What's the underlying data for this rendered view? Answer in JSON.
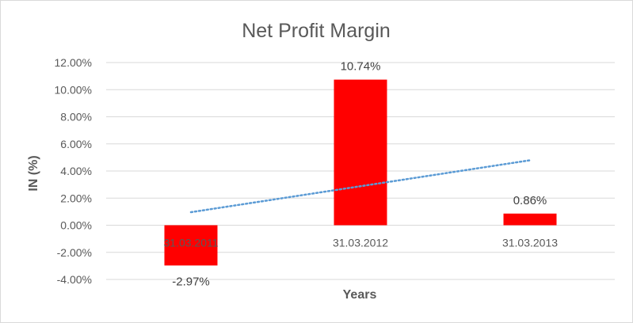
{
  "chart_data": {
    "type": "bar",
    "title": "Net Profit Margin",
    "xlabel": "Years",
    "ylabel": "IN (%)",
    "categories": [
      "31.03.2011",
      "31.03.2012",
      "31.03.2013"
    ],
    "values": [
      -2.97,
      10.74,
      0.86
    ],
    "data_labels": [
      "-2.97%",
      "10.74%",
      "0.86%"
    ],
    "ylim": [
      -4,
      12
    ],
    "yticks": [
      -4,
      -2,
      0,
      2,
      4,
      6,
      8,
      10,
      12
    ],
    "ytick_labels": [
      "-4.00%",
      "-2.00%",
      "0.00%",
      "2.00%",
      "4.00%",
      "6.00%",
      "8.00%",
      "10.00%",
      "12.00%"
    ],
    "grid": true,
    "trendline": "linear",
    "colors": {
      "bar": "#ff0000",
      "trendline": "#5b9bd5",
      "grid": "#d9d9d9",
      "text": "#595959"
    }
  }
}
